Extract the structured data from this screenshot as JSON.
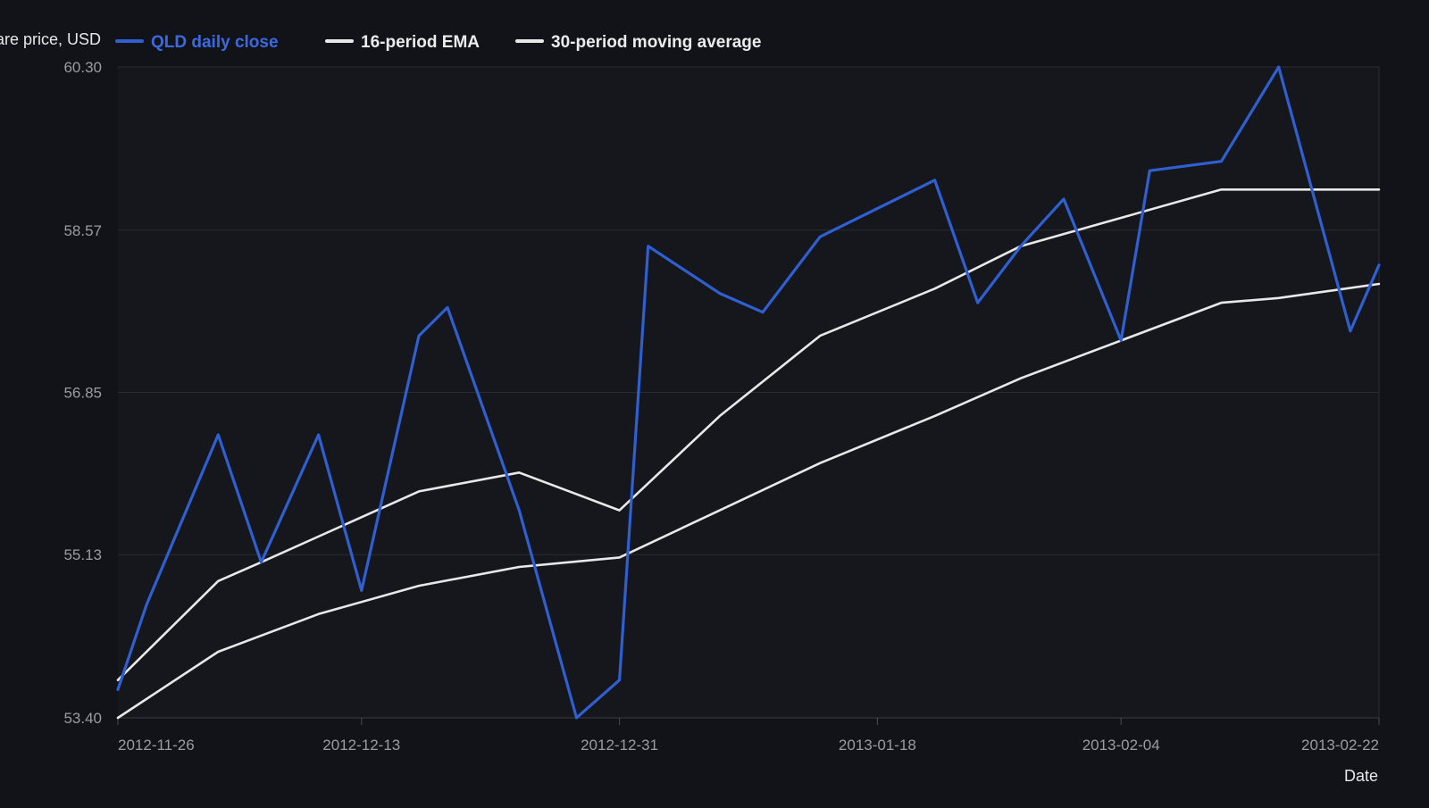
{
  "chart_data": {
    "type": "line",
    "title": "",
    "xlabel": "Date",
    "ylabel": "Share price, USD",
    "x_ticks": [
      "2012-11-26",
      "2012-12-13",
      "2012-12-31",
      "2013-01-18",
      "2013-02-04",
      "2013-02-22"
    ],
    "y_ticks": [
      "53.40",
      "55.13",
      "56.85",
      "58.57",
      "60.30"
    ],
    "xlim": [
      "2012-11-26",
      "2013-02-22"
    ],
    "ylim": [
      53.4,
      60.3
    ],
    "grid": true,
    "legend_position": "top-left",
    "series": [
      {
        "name": "QLD daily close",
        "color": "#2f5fd0",
        "points": [
          [
            "2012-11-26",
            53.7
          ],
          [
            "2012-11-28",
            54.6
          ],
          [
            "2012-12-03",
            56.4
          ],
          [
            "2012-12-06",
            55.05
          ],
          [
            "2012-12-10",
            56.4
          ],
          [
            "2012-12-13",
            54.75
          ],
          [
            "2012-12-17",
            57.45
          ],
          [
            "2012-12-19",
            57.75
          ],
          [
            "2012-12-24",
            55.6
          ],
          [
            "2012-12-28",
            53.4
          ],
          [
            "2012-12-31",
            53.8
          ],
          [
            "2013-01-02",
            58.4
          ],
          [
            "2013-01-07",
            57.9
          ],
          [
            "2013-01-10",
            57.7
          ],
          [
            "2013-01-14",
            58.5
          ],
          [
            "2013-01-22",
            59.1
          ],
          [
            "2013-01-25",
            57.8
          ],
          [
            "2013-01-28",
            58.4
          ],
          [
            "2013-01-31",
            58.9
          ],
          [
            "2013-02-04",
            57.4
          ],
          [
            "2013-02-06",
            59.2
          ],
          [
            "2013-02-11",
            59.3
          ],
          [
            "2013-02-15",
            60.3
          ],
          [
            "2013-02-20",
            57.5
          ],
          [
            "2013-02-22",
            58.2
          ]
        ]
      },
      {
        "name": "16-period EMA",
        "color": "#e8e8e8",
        "points": [
          [
            "2012-11-26",
            53.8
          ],
          [
            "2012-12-03",
            54.85
          ],
          [
            "2012-12-06",
            55.05
          ],
          [
            "2012-12-17",
            55.8
          ],
          [
            "2012-12-24",
            56.0
          ],
          [
            "2012-12-31",
            55.6
          ],
          [
            "2013-01-07",
            56.6
          ],
          [
            "2013-01-14",
            57.45
          ],
          [
            "2013-01-22",
            57.95
          ],
          [
            "2013-01-28",
            58.4
          ],
          [
            "2013-02-04",
            58.7
          ],
          [
            "2013-02-11",
            59.0
          ],
          [
            "2013-02-15",
            59.0
          ],
          [
            "2013-02-22",
            59.0
          ]
        ]
      },
      {
        "name": "30-period moving average",
        "color": "#e8e8e8",
        "points": [
          [
            "2012-11-26",
            53.4
          ],
          [
            "2012-12-03",
            54.1
          ],
          [
            "2012-12-10",
            54.5
          ],
          [
            "2012-12-17",
            54.8
          ],
          [
            "2012-12-24",
            55.0
          ],
          [
            "2012-12-31",
            55.1
          ],
          [
            "2013-01-07",
            55.6
          ],
          [
            "2013-01-14",
            56.1
          ],
          [
            "2013-01-22",
            56.6
          ],
          [
            "2013-01-28",
            57.0
          ],
          [
            "2013-02-04",
            57.4
          ],
          [
            "2013-02-11",
            57.8
          ],
          [
            "2013-02-15",
            57.85
          ],
          [
            "2013-02-22",
            58.0
          ]
        ]
      }
    ]
  }
}
